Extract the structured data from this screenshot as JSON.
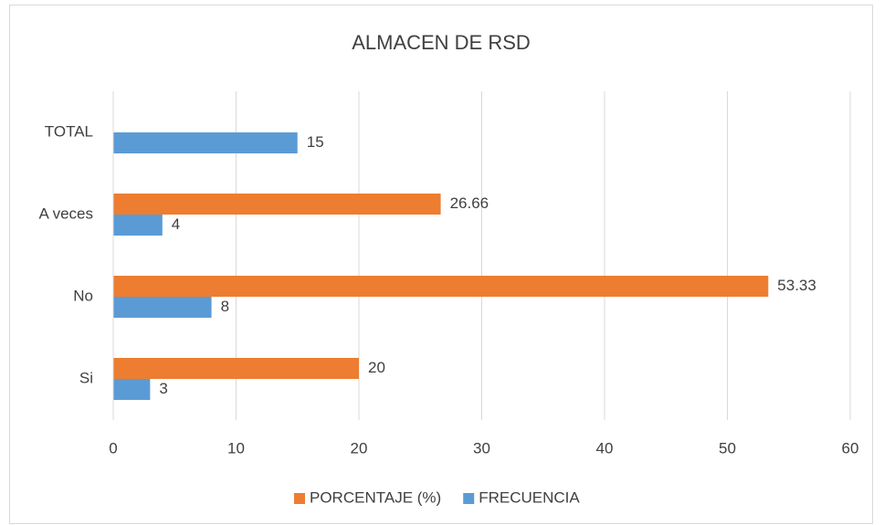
{
  "chart_data": {
    "type": "bar",
    "orientation": "horizontal",
    "title": "ALMACEN DE RSD",
    "categories": [
      "Si",
      "No",
      "A veces",
      "TOTAL"
    ],
    "series": [
      {
        "name": "PORCENTAJE (%)",
        "color": "#ed7d31",
        "values": [
          20,
          53.33,
          26.66,
          null
        ]
      },
      {
        "name": "FRECUENCIA",
        "color": "#5b9bd5",
        "values": [
          3,
          8,
          4,
          15
        ]
      }
    ],
    "xlim": [
      0,
      60
    ],
    "xticks": [
      0,
      10,
      20,
      30,
      40,
      50,
      60
    ],
    "grid": true,
    "legend": "bottom"
  }
}
